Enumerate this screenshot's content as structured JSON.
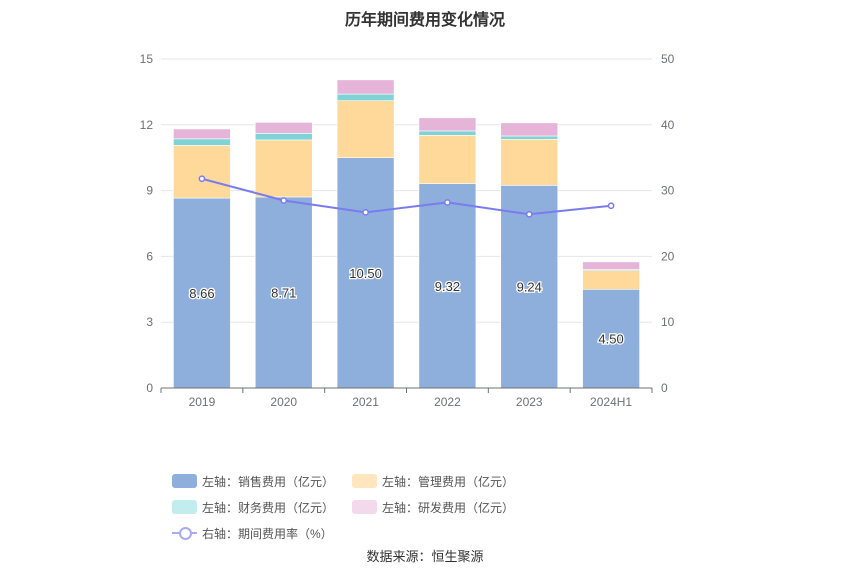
{
  "title": "历年期间费用变化情况",
  "source": "数据来源：恒生聚源",
  "chart_data": {
    "type": "bar",
    "stacked": true,
    "categories": [
      "2019",
      "2020",
      "2021",
      "2022",
      "2023",
      "2024H1"
    ],
    "left_axis": {
      "min": 0,
      "max": 15,
      "ticks": [
        0,
        3,
        6,
        9,
        12,
        15
      ]
    },
    "right_axis": {
      "min": 0,
      "max": 50,
      "ticks": [
        0,
        10,
        20,
        30,
        40,
        50
      ]
    },
    "series": [
      {
        "name": "左轴：销售费用（亿元）",
        "axis": "left",
        "type": "bar",
        "color": "#8eaedb",
        "values": [
          8.66,
          8.71,
          10.5,
          9.32,
          9.24,
          4.5
        ],
        "labels": [
          "8.66",
          "8.71",
          "10.50",
          "9.32",
          "9.24",
          "4.50"
        ]
      },
      {
        "name": "左轴：管理费用（亿元）",
        "axis": "left",
        "type": "bar",
        "color": "#ffd99a",
        "values": [
          2.4,
          2.6,
          2.6,
          2.2,
          2.1,
          0.85
        ]
      },
      {
        "name": "左轴：财务费用（亿元）",
        "axis": "left",
        "type": "bar",
        "color": "#7fd3d6",
        "values": [
          0.3,
          0.3,
          0.3,
          0.2,
          0.15,
          0.05
        ]
      },
      {
        "name": "左轴：研发费用（亿元）",
        "axis": "left",
        "type": "bar",
        "color": "#e6b4d9",
        "values": [
          0.45,
          0.5,
          0.65,
          0.6,
          0.6,
          0.35
        ]
      },
      {
        "name": "右轴：期间费用率（%）",
        "axis": "right",
        "type": "line",
        "color": "#7b7bf0",
        "values": [
          31.8,
          28.5,
          26.7,
          28.2,
          26.4,
          27.7
        ]
      }
    ],
    "legend_position": "bottom",
    "grid": true
  }
}
